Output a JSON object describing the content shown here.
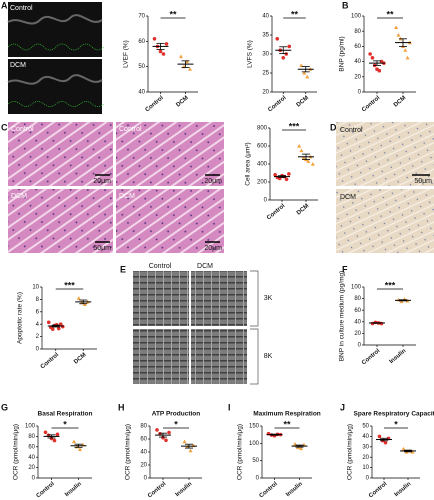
{
  "figure": {
    "panel_letters": [
      "A",
      "B",
      "C",
      "D",
      "E",
      "F",
      "G",
      "H",
      "I",
      "J"
    ],
    "echo_labels": [
      "Control",
      "DCM"
    ],
    "histology": {
      "labels": [
        "Control",
        "Control",
        "DCM",
        "DCM"
      ],
      "scale_bars": [
        "20μm",
        "20μm",
        "50μm",
        "20μm"
      ]
    },
    "ihc": {
      "labels": [
        "Control",
        "DCM"
      ],
      "scale_bar": "50μm"
    },
    "em": {
      "columns": [
        "Control",
        "DCM"
      ],
      "rows": [
        "3K",
        "8K"
      ]
    }
  },
  "chart_data": [
    {
      "type": "dot",
      "ylabel": "LVEF (%)",
      "categories": [
        "Control",
        "DCM"
      ],
      "ylim": [
        40,
        70
      ],
      "yticks": [
        40,
        50,
        60,
        70
      ],
      "significance": "**",
      "groups": [
        {
          "color": "#e0302c",
          "marker": "circle",
          "values": [
            61,
            58,
            56,
            55,
            59
          ],
          "mean": 58,
          "sem": 1.2
        },
        {
          "color": "#f2a03c",
          "marker": "triangle",
          "values": [
            54,
            50,
            52,
            49
          ],
          "mean": 51,
          "sem": 1.3
        }
      ]
    },
    {
      "type": "dot",
      "ylabel": "LVFS (%)",
      "categories": [
        "Control",
        "DCM"
      ],
      "ylim": [
        20,
        40
      ],
      "yticks": [
        20,
        25,
        30,
        35,
        40
      ],
      "significance": "**",
      "groups": [
        {
          "color": "#e0302c",
          "marker": "circle",
          "values": [
            34,
            31,
            29,
            30,
            32
          ],
          "mean": 31,
          "sem": 0.9
        },
        {
          "color": "#f2a03c",
          "marker": "triangle",
          "values": [
            27,
            25,
            24,
            26
          ],
          "mean": 26,
          "sem": 0.7
        }
      ]
    },
    {
      "type": "dot",
      "ylabel": "BNP (pg/ml)",
      "categories": [
        "Control",
        "DCM"
      ],
      "ylim": [
        0,
        100
      ],
      "yticks": [
        0,
        20,
        40,
        60,
        80,
        100
      ],
      "significance": "**",
      "groups": [
        {
          "color": "#e0302c",
          "marker": "circle",
          "values": [
            50,
            45,
            35,
            30,
            28,
            40,
            38
          ],
          "mean": 38,
          "sem": 3
        },
        {
          "color": "#f2a03c",
          "marker": "triangle",
          "values": [
            85,
            75,
            70,
            60,
            55,
            45,
            65
          ],
          "mean": 65,
          "sem": 5
        }
      ]
    },
    {
      "type": "dot",
      "ylabel": "Cell area (μm²)",
      "categories": [
        "Control",
        "DCM"
      ],
      "ylim": [
        0,
        800
      ],
      "yticks": [
        0,
        200,
        400,
        600,
        800
      ],
      "significance": "***",
      "groups": [
        {
          "color": "#e0302c",
          "marker": "circle",
          "values": [
            280,
            250,
            240,
            270,
            260,
            230,
            290
          ],
          "mean": 260,
          "sem": 10
        },
        {
          "color": "#f2a03c",
          "marker": "triangle",
          "values": [
            600,
            550,
            470,
            450,
            430,
            480,
            400
          ],
          "mean": 480,
          "sem": 30
        }
      ]
    },
    {
      "type": "dot",
      "ylabel": "Apoptotic rate (%)",
      "categories": [
        "Control",
        "DCM"
      ],
      "ylim": [
        0,
        10
      ],
      "yticks": [
        0,
        2,
        4,
        6,
        8,
        10
      ],
      "significance": "***",
      "groups": [
        {
          "color": "#e0302c",
          "marker": "circle",
          "values": [
            4.3,
            3.5,
            3.2,
            3.8,
            3.9,
            3.3,
            4.0,
            3.6
          ],
          "mean": 3.7,
          "sem": 0.15
        },
        {
          "color": "#f2a03c",
          "marker": "triangle",
          "values": [
            8.2,
            7.5,
            7.2,
            7.6
          ],
          "mean": 7.6,
          "sem": 0.3
        }
      ]
    },
    {
      "type": "dot",
      "ylabel": "BNP in culture medium (pg/mg)",
      "categories": [
        "Control",
        "Insulin"
      ],
      "ylim": [
        0,
        100
      ],
      "yticks": [
        0,
        20,
        40,
        60,
        80,
        100
      ],
      "significance": "***",
      "groups": [
        {
          "color": "#e0302c",
          "marker": "circle",
          "values": [
            37,
            39,
            38,
            37
          ],
          "mean": 38,
          "sem": 0.5
        },
        {
          "color": "#f2a03c",
          "marker": "triangle",
          "values": [
            78,
            75,
            79,
            76
          ],
          "mean": 77,
          "sem": 1
        }
      ]
    },
    {
      "type": "dot",
      "title": "Basal Respiration",
      "ylabel": "OCR (pmol/min/μg)",
      "categories": [
        "Control",
        "Insulin"
      ],
      "ylim": [
        0,
        100
      ],
      "yticks": [
        0,
        20,
        40,
        60,
        80,
        100
      ],
      "significance": "*",
      "groups": [
        {
          "color": "#e0302c",
          "marker": "circle",
          "values": [
            88,
            82,
            76,
            72,
            84
          ],
          "mean": 80,
          "sem": 3
        },
        {
          "color": "#f2a03c",
          "marker": "triangle",
          "values": [
            70,
            60,
            55,
            64
          ],
          "mean": 62,
          "sem": 3
        }
      ]
    },
    {
      "type": "dot",
      "title": "ATP Production",
      "ylabel": "OCR (pmol/min/μg)",
      "categories": [
        "Control",
        "Insulin"
      ],
      "ylim": [
        0,
        80
      ],
      "yticks": [
        0,
        20,
        40,
        60,
        80
      ],
      "significance": "*",
      "groups": [
        {
          "color": "#e0302c",
          "marker": "circle",
          "values": [
            74,
            68,
            62,
            58,
            70
          ],
          "mean": 66,
          "sem": 3
        },
        {
          "color": "#f2a03c",
          "marker": "triangle",
          "values": [
            56,
            48,
            42,
            50
          ],
          "mean": 49,
          "sem": 3
        }
      ]
    },
    {
      "type": "dot",
      "title": "Maximum Respiration",
      "ylabel": "OCR (pmol/min/μg)",
      "categories": [
        "Control",
        "Insulin"
      ],
      "ylim": [
        0,
        150
      ],
      "yticks": [
        0,
        50,
        100,
        150
      ],
      "significance": "**",
      "groups": [
        {
          "color": "#e0302c",
          "marker": "circle",
          "values": [
            128,
            124,
            122,
            126,
            125
          ],
          "mean": 125,
          "sem": 1.5
        },
        {
          "color": "#f2a03c",
          "marker": "triangle",
          "values": [
            98,
            88,
            85,
            96
          ],
          "mean": 92,
          "sem": 3
        }
      ]
    },
    {
      "type": "dot",
      "title": "Spare Respiratory Capacity",
      "ylabel": "OCR (pmol/min/μg)",
      "categories": [
        "Control",
        "Insulin"
      ],
      "ylim": [
        0,
        50
      ],
      "yticks": [
        0,
        10,
        20,
        30,
        40,
        50
      ],
      "significance": "*",
      "groups": [
        {
          "color": "#e0302c",
          "marker": "circle",
          "values": [
            40,
            36,
            34,
            38
          ],
          "mean": 37,
          "sem": 1.2
        },
        {
          "color": "#f2a03c",
          "marker": "triangle",
          "values": [
            28,
            25,
            26,
            25
          ],
          "mean": 26,
          "sem": 0.8
        }
      ]
    }
  ]
}
